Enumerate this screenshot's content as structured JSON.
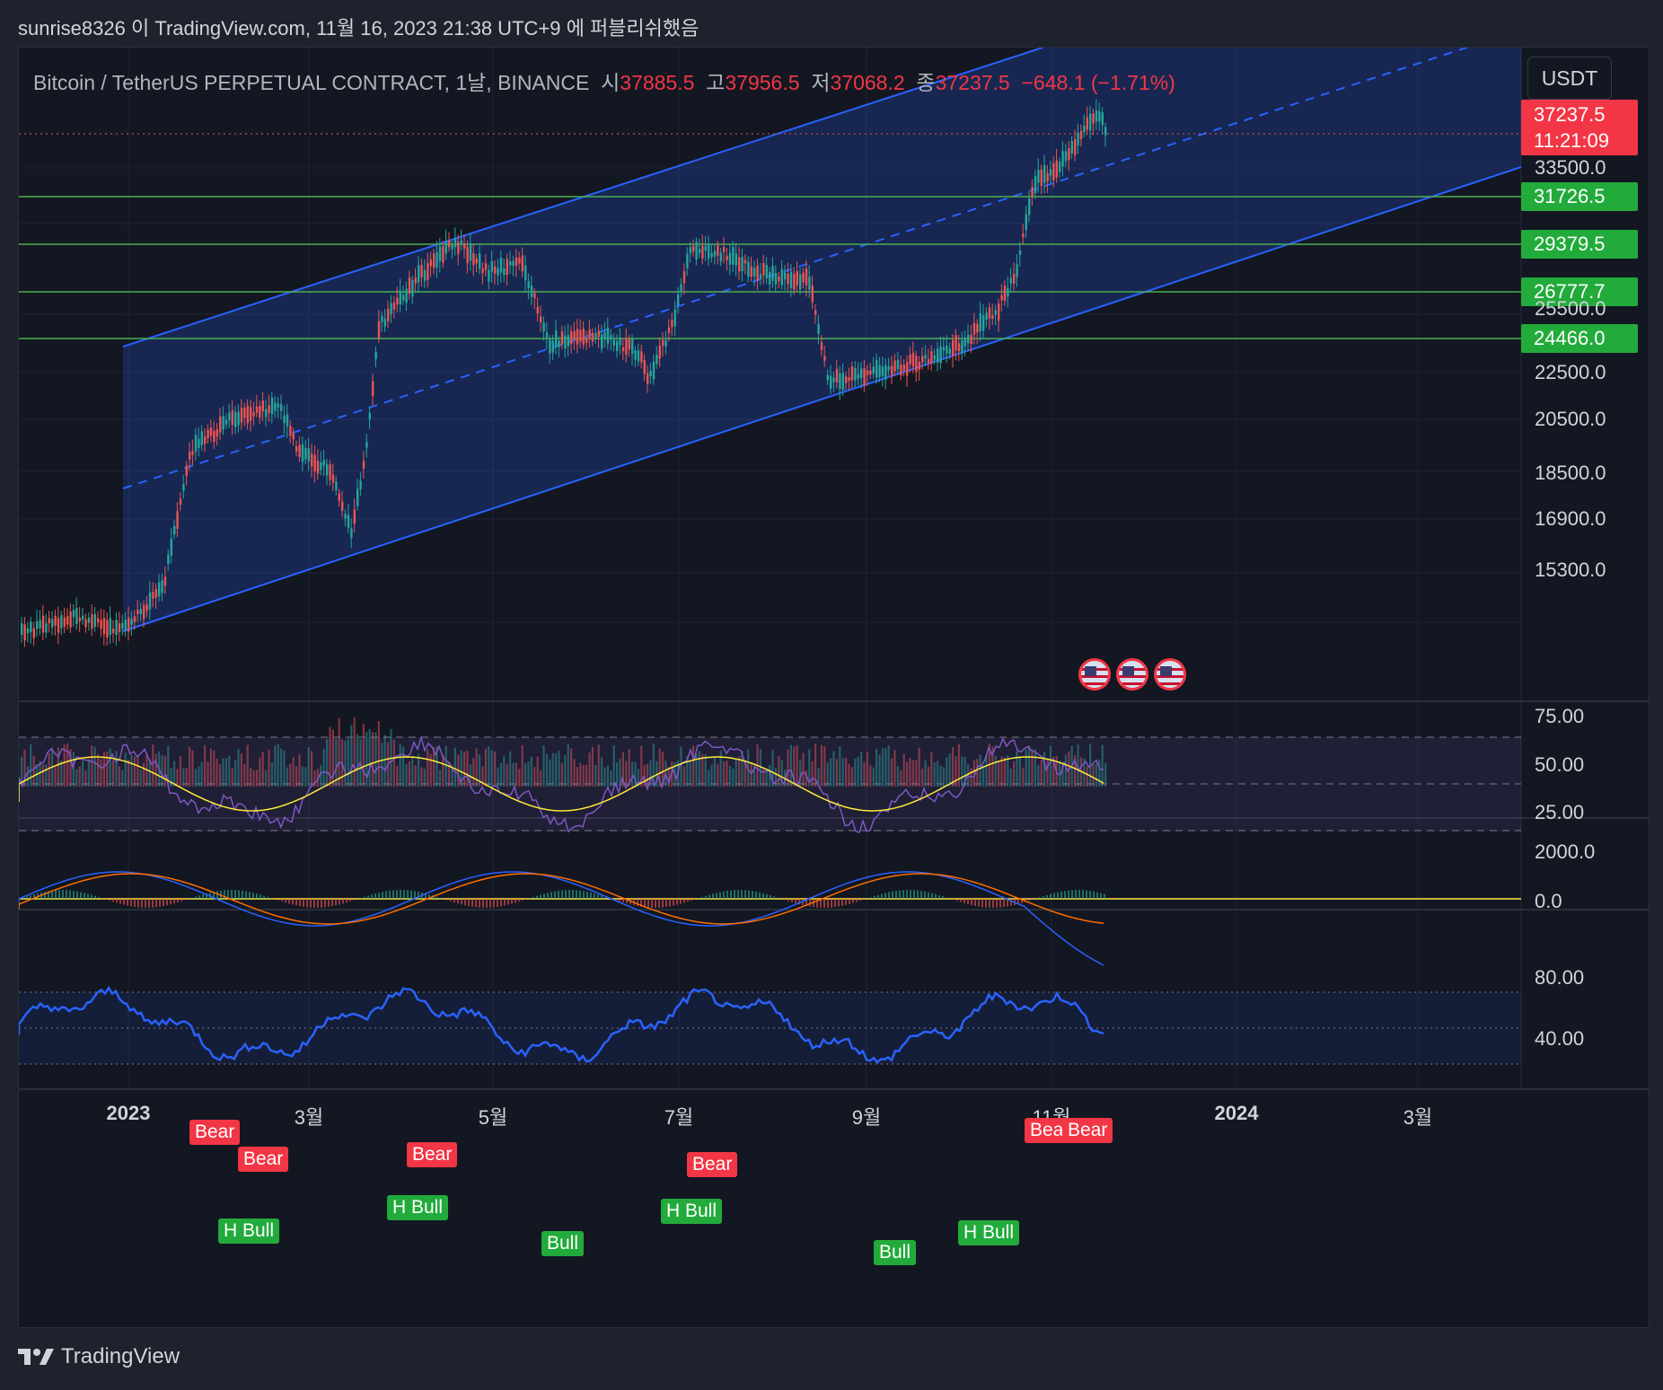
{
  "publish_info": "sunrise8326 이 TradingView.com, 11월 16, 2023 21:38 UTC+9 에 퍼블리쉬했음",
  "symbol": {
    "name": "Bitcoin / TetherUS PERPETUAL CONTRACT, 1날, BINANCE",
    "open_label": "시",
    "open": "37885.5",
    "high_label": "고",
    "high": "37956.5",
    "low_label": "저",
    "low": "37068.2",
    "close_label": "종",
    "close": "37237.5",
    "change": "−648.1 (−1.71%)"
  },
  "currency_button": "USDT",
  "last_price": {
    "price": "37237.5",
    "countdown": "11:21:09",
    "color": "#f23645"
  },
  "level_tags": [
    "31726.5",
    "29379.5",
    "26777.7",
    "24466.0"
  ],
  "price_axis": [
    "33500.0",
    "25500.0",
    "22500.0",
    "20500.0",
    "18500.0",
    "16900.0",
    "15300.0"
  ],
  "rsi_axis": [
    "75.00",
    "50.00",
    "25.00"
  ],
  "macd_axis": [
    "2000.0",
    "0.0"
  ],
  "osc_axis": [
    "80.00",
    "40.00"
  ],
  "time_axis": [
    {
      "label": "2023",
      "bold": true
    },
    {
      "label": "3월",
      "bold": false
    },
    {
      "label": "5월",
      "bold": false
    },
    {
      "label": "7월",
      "bold": false
    },
    {
      "label": "9월",
      "bold": false
    },
    {
      "label": "11월",
      "bold": false
    },
    {
      "label": "2024",
      "bold": true
    },
    {
      "label": "3월",
      "bold": false
    }
  ],
  "event_icons": [
    "us-flag-icon",
    "us-flag-icon",
    "us-flag-icon"
  ],
  "divergence_labels": [
    {
      "text": "Bear",
      "kind": "bear"
    },
    {
      "text": "Bear",
      "kind": "bear"
    },
    {
      "text": "Bear",
      "kind": "bear"
    },
    {
      "text": "Bear",
      "kind": "bear"
    },
    {
      "text": "Bear",
      "kind": "bear"
    },
    {
      "text": "Bear",
      "kind": "bear"
    },
    {
      "text": "H Bull",
      "kind": "bull"
    },
    {
      "text": "H Bull",
      "kind": "bull"
    },
    {
      "text": "Bull",
      "kind": "bull"
    },
    {
      "text": "H Bull",
      "kind": "bull"
    },
    {
      "text": "Bull",
      "kind": "bull"
    },
    {
      "text": "H Bull",
      "kind": "bull"
    }
  ],
  "brand": "TradingView",
  "colors": {
    "up": "#26a69a",
    "down": "#ef5350",
    "channel": "#2962ff",
    "level": "#4caf50",
    "rsi": "#7e57c2",
    "rsi_ma": "#ffeb3b",
    "macd": "#2962ff",
    "signal": "#ff6d00",
    "osc": "#2962ff"
  }
}
